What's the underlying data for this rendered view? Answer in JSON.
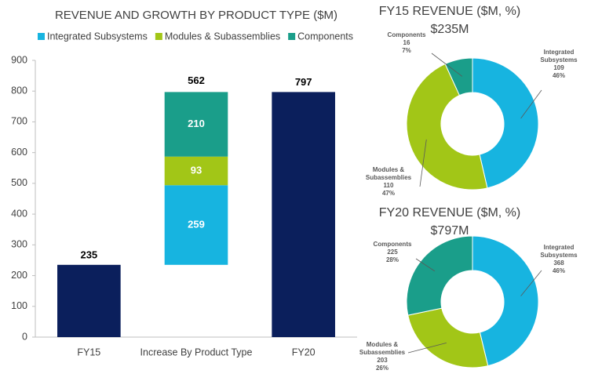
{
  "chart_data": [
    {
      "type": "waterfall",
      "title": "REVENUE AND GROWTH BY PRODUCT TYPE ($M)",
      "categories": [
        "FY15",
        "Increase By Product Type",
        "FY20"
      ],
      "totals": {
        "color": "#0b1f5c",
        "values": [
          235,
          null,
          797
        ]
      },
      "series": [
        {
          "name": "Integrated Subsystems",
          "color": "#17b4e0",
          "values": [
            null,
            259,
            null
          ]
        },
        {
          "name": "Modules & Subassemblies",
          "color": "#a2c617",
          "values": [
            null,
            93,
            null
          ]
        },
        {
          "name": "Components",
          "color": "#1a9e8a",
          "values": [
            null,
            210,
            null
          ]
        }
      ],
      "stack_totals": [
        null,
        562,
        null
      ],
      "ylim": [
        0,
        900
      ],
      "yticks": [
        0,
        100,
        200,
        300,
        400,
        500,
        600,
        700,
        800,
        900
      ]
    },
    {
      "type": "donut",
      "title": "FY15 REVENUE ($M, %)",
      "subtitle": "$235M",
      "categories": [
        "Integrated Subsystems",
        "Modules & Subassemblies",
        "Components"
      ],
      "values": [
        109,
        110,
        16
      ],
      "percent_labels": [
        "46%",
        "47%",
        "7%"
      ],
      "colors": [
        "#17b4e0",
        "#a2c617",
        "#1a9e8a"
      ]
    },
    {
      "type": "donut",
      "title": "FY20 REVENUE ($M, %)",
      "subtitle": "$797M",
      "categories": [
        "Integrated Subsystems",
        "Modules & Subassemblies",
        "Components"
      ],
      "values": [
        368,
        203,
        225
      ],
      "percent_labels": [
        "46%",
        "26%",
        "28%"
      ],
      "colors": [
        "#17b4e0",
        "#a2c617",
        "#1a9e8a"
      ]
    }
  ]
}
